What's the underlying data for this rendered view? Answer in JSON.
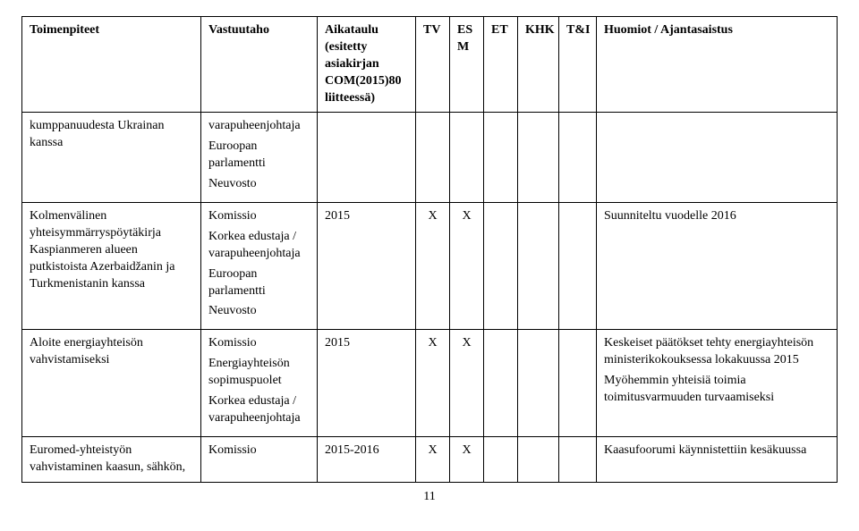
{
  "header": {
    "toimenpiteet": "Toimenpiteet",
    "vastuutaho": "Vastuutaho",
    "aikataulu": "Aikataulu (esitetty asiakirjan COM(2015)80 liitteessä)",
    "tv": "TV",
    "esm": "ES M",
    "et": "ET",
    "khk": "KHK",
    "ti": "T&I",
    "huomiot": "Huomiot / Ajantasaistus"
  },
  "rows": {
    "r1": {
      "toim": "kumppanuudesta Ukrainan kanssa",
      "vast1": "varapuheenjohtaja",
      "vast2": "Euroopan parlamentti",
      "vast3": "Neuvosto"
    },
    "r2": {
      "toim": "Kolmenvälinen yhteisymmärryspöytäkirja Kaspianmeren alueen putkistoista Azerbaidžanin ja Turkmenistanin kanssa",
      "vast1": "Komissio",
      "vast2": "Korkea edustaja / varapuheenjohtaja",
      "vast3": "Euroopan parlamentti",
      "vast4": "Neuvosto",
      "aika": "2015",
      "tv": "X",
      "esm": "X",
      "huom": "Suunniteltu vuodelle 2016"
    },
    "r3": {
      "toim": "Aloite energiayhteisön vahvistamiseksi",
      "vast1": "Komissio",
      "vast2": "Energiayhteisön sopimuspuolet",
      "vast3": "Korkea edustaja / varapuheenjohtaja",
      "aika": "2015",
      "tv": "X",
      "esm": "X",
      "huom1": "Keskeiset päätökset tehty energiayhteisön ministerikokouksessa lokakuussa 2015",
      "huom2": "Myöhemmin yhteisiä toimia toimitusvarmuuden turvaamiseksi"
    },
    "r4": {
      "toim": "Euromed-yhteistyön vahvistaminen kaasun, sähkön,",
      "vast1": "Komissio",
      "aika": "2015-2016",
      "tv": "X",
      "esm": "X",
      "huom": "Kaasufoorumi käynnistettiin kesäkuussa"
    }
  },
  "pagenum": "11"
}
